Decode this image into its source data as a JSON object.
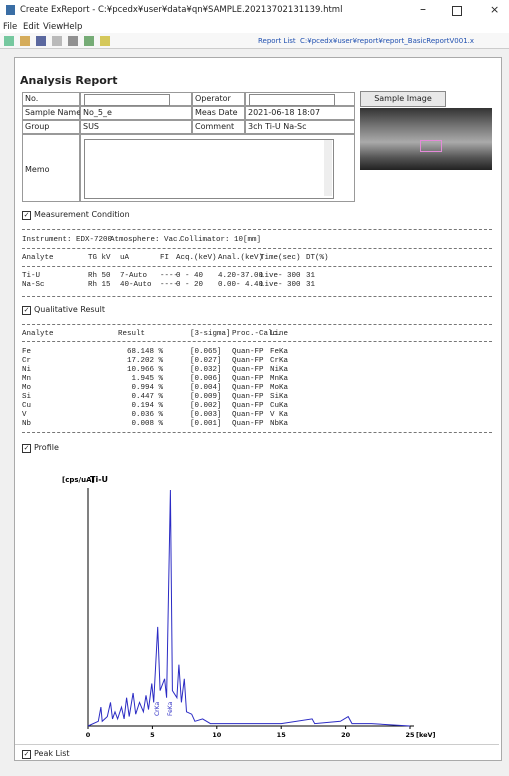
{
  "window": {
    "title": "Create ExReport - C:¥pcedx¥user¥data¥qn¥SAMPLE.20213702131139.html"
  },
  "menu": [
    "File",
    "Edit",
    "View",
    "Help"
  ],
  "toolbar": {
    "report_list": "Report List",
    "report_path": "C:¥pcedx¥user¥report¥report_BasicReportV001.x"
  },
  "report": {
    "title": "Analysis Report",
    "fields": {
      "no_label": "No.",
      "operator_label": "Operator",
      "sample_name_label": "Sample Name",
      "sample_name": "No_5_e",
      "meas_date_label": "Meas Date",
      "meas_date": "2021-06-18 18:07",
      "group_label": "Group",
      "group": "SUS",
      "comment_label": "Comment",
      "comment": "3ch Ti-U Na-Sc",
      "memo_label": "Memo",
      "sample_image_button": "Sample Image"
    },
    "measurement": {
      "heading": "Measurement Condition",
      "instrument": "Instrument: EDX-7200",
      "atmosphere": "Atmosphere: Vac.",
      "collimator": "Collimator: 10[mm]",
      "headers": [
        "Analyte",
        "TG kV",
        "uA",
        "FI",
        "Acq.(keV)",
        "Anal.(keV)",
        "Time(sec)",
        "DT(%)"
      ],
      "rows": [
        [
          "Ti-U",
          "Rh 50",
          "7-Auto",
          "----",
          "0 - 40",
          "4.20-37.00",
          "Live- 300",
          "31"
        ],
        [
          "Na-Sc",
          "Rh 15",
          "40-Auto",
          "----",
          "0 - 20",
          "0.00- 4.40",
          "Live- 300",
          "31"
        ]
      ]
    },
    "qualitative": {
      "heading": "Qualitative Result",
      "headers": [
        "Analyte",
        "Result",
        "[3-sigma]",
        "Proc.-Calc.",
        "Line"
      ],
      "rows": [
        [
          "Fe",
          "68.148 %",
          "[0.065]",
          "Quan-FP",
          "FeKa"
        ],
        [
          "Cr",
          "17.202 %",
          "[0.027]",
          "Quan-FP",
          "CrKa"
        ],
        [
          "Ni",
          "10.966 %",
          "[0.032]",
          "Quan-FP",
          "NiKa"
        ],
        [
          "Mn",
          "1.945 %",
          "[0.006]",
          "Quan-FP",
          "MnKa"
        ],
        [
          "Mo",
          "0.994 %",
          "[0.004]",
          "Quan-FP",
          "MoKa"
        ],
        [
          "Si",
          "0.447 %",
          "[0.009]",
          "Quan-FP",
          "SiKa"
        ],
        [
          "Cu",
          "0.194 %",
          "[0.002]",
          "Quan-FP",
          "CuKa"
        ],
        [
          "V",
          "0.036 %",
          "[0.003]",
          "Quan-FP",
          "V Ka"
        ],
        [
          "Nb",
          "0.008 %",
          "[0.001]",
          "Quan-FP",
          "NbKa"
        ]
      ]
    },
    "profile_heading": "Profile",
    "peak_list_heading": "Peak List"
  },
  "chart_data": {
    "type": "line",
    "title": "Ti-U",
    "y_label": "[cps/uA]",
    "x_label": "[keV]",
    "color": "#2b2bc4",
    "x": [
      0,
      0.8,
      1.0,
      1.1,
      1.5,
      1.75,
      1.9,
      2.1,
      2.3,
      2.6,
      2.8,
      3.0,
      3.2,
      3.5,
      3.7,
      4.0,
      4.3,
      4.5,
      4.7,
      4.95,
      5.1,
      5.41,
      5.6,
      5.95,
      6.1,
      6.4,
      6.55,
      6.9,
      7.06,
      7.25,
      7.48,
      7.65,
      8.05,
      8.3,
      8.9,
      9.5,
      12,
      15,
      17.4,
      17.6,
      19.6,
      20.2,
      20.5,
      22,
      25
    ],
    "values": [
      0,
      2,
      8,
      2,
      4,
      10,
      3,
      6,
      3,
      8,
      3,
      12,
      4,
      14,
      5,
      10,
      6,
      13,
      7,
      18,
      10,
      42,
      15,
      20,
      12,
      100,
      15,
      12,
      26,
      10,
      20,
      6,
      5,
      2,
      3,
      1,
      1,
      1,
      3,
      1,
      2,
      4,
      1,
      1,
      0
    ],
    "xlim": [
      0,
      25
    ],
    "ylim": [
      0,
      100
    ],
    "xticks": [
      0,
      5,
      10,
      15,
      20,
      25
    ],
    "annotations": [
      {
        "x": 6.4,
        "text": "FeKa"
      },
      {
        "x": 5.41,
        "text": "CrKa"
      }
    ]
  }
}
